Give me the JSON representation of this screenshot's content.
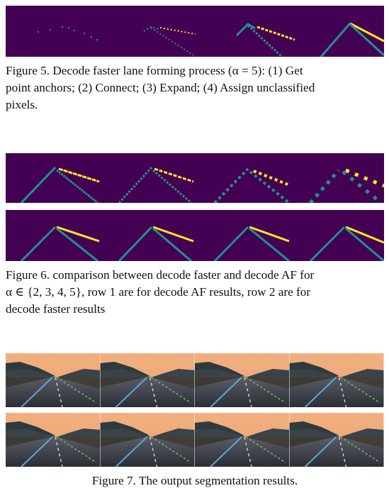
{
  "figure5": {
    "caption_lines": [
      "Figure 5. Decode faster lane forming process (α = 5): (1) Get",
      "point anchors; (2) Connect; (3) Expand; (4) Assign unclassified",
      "pixels."
    ],
    "panels": [
      "(1) Get point anchors",
      "(2) Connect",
      "(3) Expand",
      "(4) Assign unclassified pixels"
    ]
  },
  "figure6": {
    "caption_lines": [
      "Figure 6. comparison between decode faster and decode AF for",
      "α ∈ {2, 3, 4, 5}, row 1 are for decode AF results, row 2 are for",
      "decode faster results"
    ],
    "alphas": [
      2,
      3,
      4,
      5
    ],
    "rows": [
      "decode AF",
      "decode faster"
    ]
  },
  "figure7": {
    "caption": "Figure 7. The output segmentation results."
  },
  "colors": {
    "background_purple": "#440154",
    "lane_teal": "#21918c",
    "lane_yellow": "#fde725",
    "lane_green": "#5ec962"
  }
}
